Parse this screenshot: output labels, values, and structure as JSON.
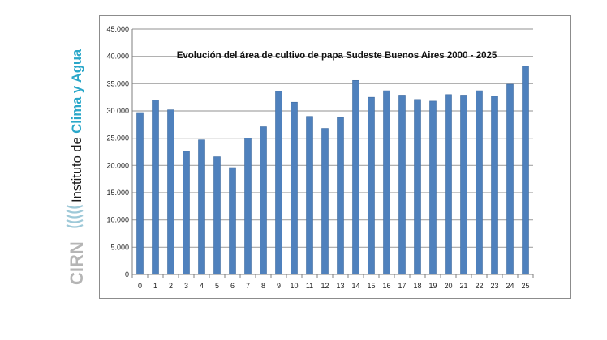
{
  "logo": {
    "institute_prefix": "Instituto de ",
    "institute_highlight": "Clima y Agua",
    "acronym": "CIRN",
    "colors": {
      "prefix": "#1a1a1a",
      "highlight": "#2aa7c9",
      "acronym": "#b5b5b5",
      "waves": "#9ec9d8"
    }
  },
  "chart_data": {
    "type": "bar",
    "title": "Evolución del área de cultivo de papa Sudeste Buenos Aires  2000 - 2025",
    "xlabel": "",
    "ylabel": "",
    "categories": [
      "0",
      "1",
      "2",
      "3",
      "4",
      "5",
      "6",
      "7",
      "8",
      "9",
      "10",
      "11",
      "12",
      "13",
      "14",
      "15",
      "16",
      "17",
      "18",
      "19",
      "20",
      "21",
      "22",
      "23",
      "24",
      "25"
    ],
    "values": [
      29700,
      32000,
      30200,
      22600,
      24700,
      21600,
      19600,
      25000,
      27100,
      33600,
      31600,
      29000,
      26800,
      28800,
      35600,
      32500,
      33700,
      32900,
      32100,
      31800,
      33000,
      32900,
      33700,
      32700,
      34900,
      38200
    ],
    "ylim": [
      0,
      45000
    ],
    "yticks": [
      0,
      5000,
      10000,
      15000,
      20000,
      25000,
      30000,
      35000,
      40000,
      45000
    ],
    "ytick_labels": [
      "0",
      "5.000",
      "10.000",
      "15.000",
      "20.000",
      "25.000",
      "30.000",
      "35.000",
      "40.000",
      "45.000"
    ],
    "grid": true,
    "legend": "none",
    "colors": {
      "bar": "#4f81bd",
      "bar_edge": "#3d6a9f",
      "grid": "#a6a6a6",
      "axis": "#7f7f7f"
    }
  }
}
